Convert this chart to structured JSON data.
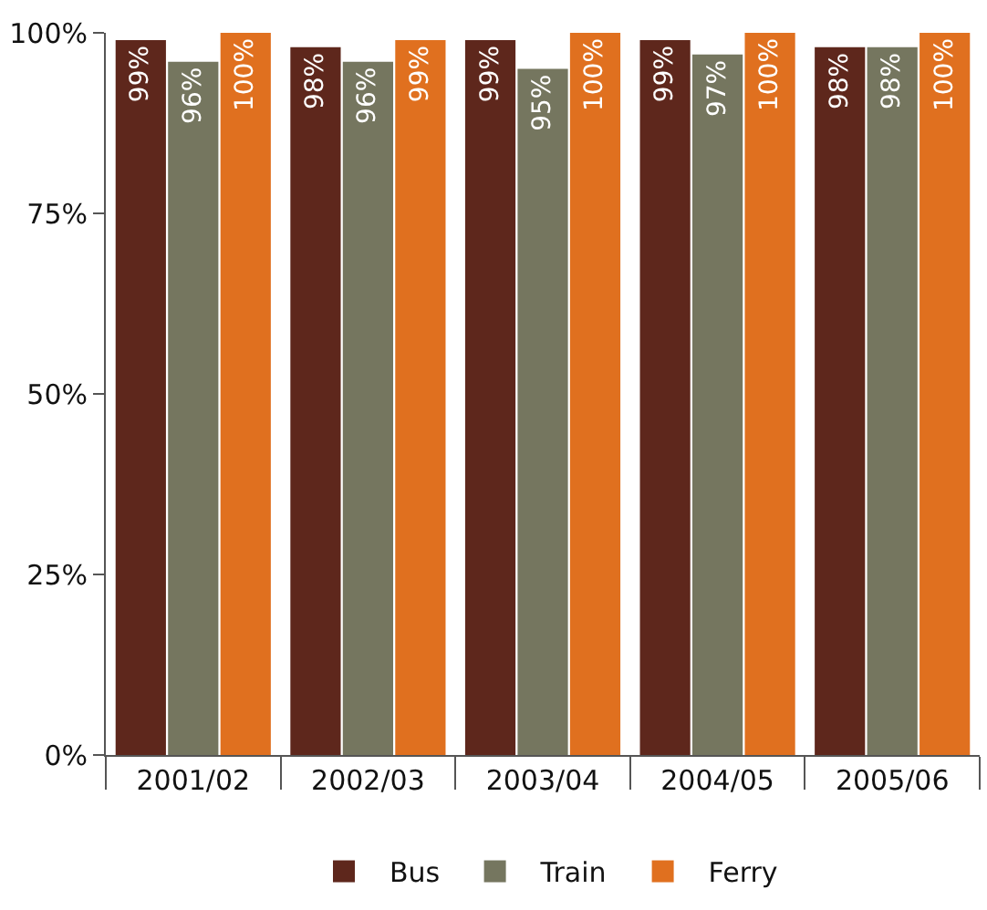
{
  "chart_data": {
    "type": "bar",
    "categories": [
      "2001/02",
      "2002/03",
      "2003/04",
      "2004/05",
      "2005/06"
    ],
    "series": [
      {
        "name": "Bus",
        "color": "#5e271c",
        "values": [
          99,
          98,
          99,
          99,
          98
        ],
        "value_labels": [
          "99%",
          "98%",
          "99%",
          "99%",
          "98%"
        ]
      },
      {
        "name": "Train",
        "color": "#75765f",
        "values": [
          96,
          96,
          95,
          97,
          98
        ],
        "value_labels": [
          "96%",
          "96%",
          "95%",
          "97%",
          "98%"
        ]
      },
      {
        "name": "Ferry",
        "color": "#e0701f",
        "values": [
          100,
          99,
          100,
          100,
          100
        ],
        "value_labels": [
          "100%",
          "99%",
          "100%",
          "100%",
          "100%"
        ]
      }
    ],
    "ylim": [
      0,
      100
    ],
    "yticks": [
      {
        "value": 0,
        "label": "0%"
      },
      {
        "value": 25,
        "label": "25%"
      },
      {
        "value": 50,
        "label": "50%"
      },
      {
        "value": 75,
        "label": "75%"
      },
      {
        "value": 100,
        "label": "100%"
      }
    ],
    "grid": false,
    "legend": "bottom"
  }
}
